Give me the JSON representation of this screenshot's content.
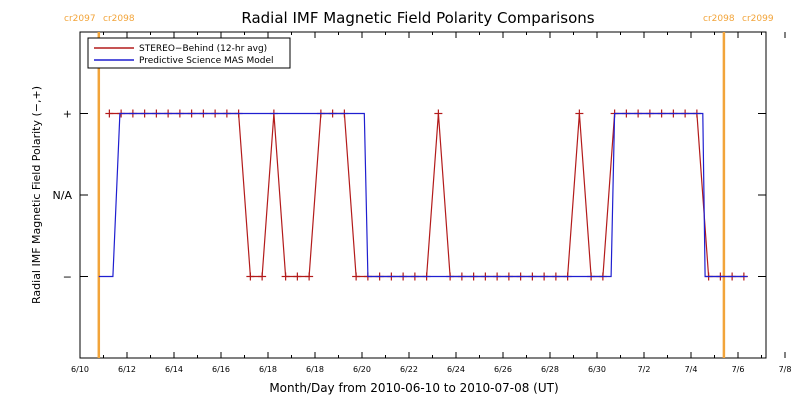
{
  "chart_data": {
    "type": "line",
    "title": "Radial IMF Magnetic Field Polarity Comparisons",
    "xlabel": "Month/Day from 2010-06-10 to 2010-07-08 (UT)",
    "ylabel": "Radial IMF Magnetic Field Polarity (−,+)",
    "x_tick_labels": [
      "6/10",
      "6/12",
      "6/14",
      "6/16",
      "6/18",
      "6/18",
      "6/20",
      "6/22",
      "6/24",
      "6/26",
      "6/28",
      "6/30",
      "7/2",
      "7/4",
      "7/6",
      "7/8"
    ],
    "y_categories": [
      "−",
      "N/A",
      "+"
    ],
    "y_values_map": {
      "−": -1,
      "N/A": 0,
      "+": 1
    },
    "x_range_days": [
      0,
      28
    ],
    "y_range": [
      -2,
      2
    ],
    "rotations": [
      {
        "label_left": "cr2097",
        "label_right": "cr2098",
        "day": 0.8
      },
      {
        "label_left": "cr2098",
        "label_right": "cr2099",
        "day": 27.4
      }
    ],
    "rotation_color": "#f2a43a",
    "legend_position": "top-left",
    "series": [
      {
        "name": "STEREO−Behind (12-hr avg)",
        "color": "#b31b1b",
        "marker": "+",
        "points": [
          [
            1.25,
            1
          ],
          [
            1.75,
            1
          ],
          [
            2.25,
            1
          ],
          [
            2.75,
            1
          ],
          [
            3.25,
            1
          ],
          [
            3.75,
            1
          ],
          [
            4.25,
            1
          ],
          [
            4.75,
            1
          ],
          [
            5.25,
            1
          ],
          [
            5.75,
            1
          ],
          [
            6.25,
            1
          ],
          [
            6.75,
            1
          ],
          [
            7.25,
            -1
          ],
          [
            7.75,
            -1
          ],
          [
            8.25,
            1
          ],
          [
            8.75,
            -1
          ],
          [
            9.25,
            -1
          ],
          [
            9.75,
            -1
          ],
          [
            10.25,
            1
          ],
          [
            10.75,
            1
          ],
          [
            11.25,
            1
          ],
          [
            11.75,
            -1
          ],
          [
            12.25,
            -1
          ],
          [
            12.75,
            -1
          ],
          [
            13.25,
            -1
          ],
          [
            13.75,
            -1
          ],
          [
            14.25,
            -1
          ],
          [
            14.75,
            -1
          ],
          [
            15.25,
            1
          ],
          [
            15.75,
            -1
          ],
          [
            16.25,
            -1
          ],
          [
            16.75,
            -1
          ],
          [
            17.25,
            -1
          ],
          [
            17.75,
            -1
          ],
          [
            18.25,
            -1
          ],
          [
            18.75,
            -1
          ],
          [
            19.25,
            -1
          ],
          [
            19.75,
            -1
          ],
          [
            20.25,
            -1
          ],
          [
            20.75,
            -1
          ],
          [
            21.25,
            1
          ],
          [
            21.75,
            -1
          ],
          [
            22.25,
            -1
          ],
          [
            22.75,
            1
          ],
          [
            23.25,
            1
          ],
          [
            23.75,
            1
          ],
          [
            24.25,
            1
          ],
          [
            24.75,
            1
          ],
          [
            25.25,
            1
          ],
          [
            25.75,
            1
          ],
          [
            26.25,
            1
          ],
          [
            26.75,
            -1
          ],
          [
            27.25,
            -1
          ],
          [
            27.75,
            -1
          ],
          [
            28.25,
            -1
          ]
        ]
      },
      {
        "name": "Predictive Science MAS Model",
        "color": "#1f1fd0",
        "marker": "none",
        "points": [
          [
            0.8,
            -1
          ],
          [
            1.4,
            -1
          ],
          [
            1.7,
            1
          ],
          [
            12.1,
            1
          ],
          [
            12.25,
            -1
          ],
          [
            22.6,
            -1
          ],
          [
            22.75,
            1
          ],
          [
            26.5,
            1
          ],
          [
            26.6,
            -1
          ],
          [
            28.4,
            -1
          ]
        ]
      }
    ]
  }
}
